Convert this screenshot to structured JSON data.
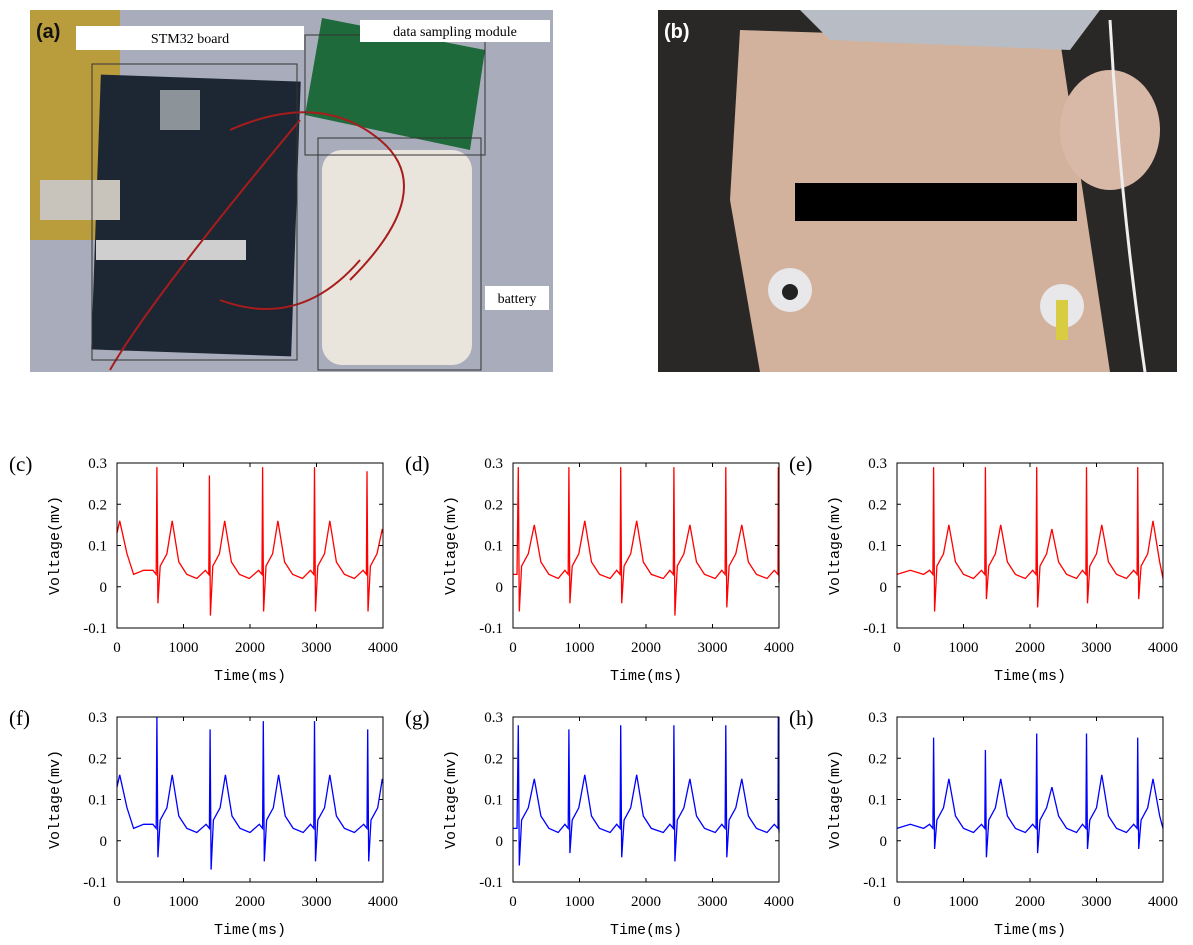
{
  "photos": {
    "a": {
      "label": "(a)",
      "annotations": [
        "STM32 board",
        "data sampling module",
        "battery"
      ]
    },
    "b": {
      "label": "(b)"
    }
  },
  "chart_data": [
    {
      "type": "line",
      "panel_label": "(c)",
      "x_label": "Time(ms)",
      "y_label": "Voltage(mv)",
      "xlim": [
        0,
        4000
      ],
      "ylim": [
        -0.1,
        0.3
      ],
      "xticks": [
        0,
        1000,
        2000,
        3000,
        4000
      ],
      "yticks": [
        -0.1,
        0,
        0.1,
        0.2,
        0.3
      ],
      "x": [
        0,
        40,
        150,
        250,
        400,
        540,
        590,
        600,
        615,
        650,
        750,
        830,
        930,
        1050,
        1200,
        1330,
        1380,
        1390,
        1405,
        1440,
        1540,
        1620,
        1720,
        1840,
        1990,
        2130,
        2180,
        2190,
        2205,
        2240,
        2340,
        2420,
        2520,
        2640,
        2790,
        2910,
        2960,
        2970,
        2985,
        3020,
        3120,
        3200,
        3300,
        3420,
        3570,
        3700,
        3750,
        3760,
        3775,
        3810,
        3910,
        3990,
        4000
      ],
      "series": [
        {
          "color": "#ff0000",
          "values": [
            0.13,
            0.16,
            0.08,
            0.03,
            0.04,
            0.04,
            0.03,
            0.29,
            -0.04,
            0.05,
            0.08,
            0.16,
            0.06,
            0.03,
            0.02,
            0.04,
            0.03,
            0.27,
            -0.07,
            0.05,
            0.08,
            0.16,
            0.06,
            0.03,
            0.02,
            0.04,
            0.03,
            0.29,
            -0.06,
            0.05,
            0.08,
            0.16,
            0.06,
            0.03,
            0.02,
            0.04,
            0.03,
            0.29,
            -0.06,
            0.05,
            0.08,
            0.16,
            0.06,
            0.03,
            0.02,
            0.04,
            0.03,
            0.28,
            -0.06,
            0.05,
            0.08,
            0.14,
            0.13
          ]
        }
      ]
    },
    {
      "type": "line",
      "panel_label": "(d)",
      "x_label": "Time(ms)",
      "y_label": "Voltage(mv)",
      "xlim": [
        0,
        4000
      ],
      "ylim": [
        -0.1,
        0.3
      ],
      "xticks": [
        0,
        1000,
        2000,
        3000,
        4000
      ],
      "yticks": [
        -0.1,
        0,
        0.1,
        0.2,
        0.3
      ],
      "x": [
        0,
        60,
        80,
        95,
        130,
        230,
        320,
        420,
        540,
        680,
        780,
        830,
        840,
        855,
        890,
        990,
        1080,
        1180,
        1300,
        1460,
        1560,
        1610,
        1620,
        1635,
        1670,
        1770,
        1860,
        1960,
        2080,
        2260,
        2360,
        2410,
        2420,
        2435,
        2470,
        2570,
        2660,
        2760,
        2880,
        3040,
        3140,
        3190,
        3200,
        3215,
        3250,
        3350,
        3440,
        3540,
        3660,
        3820,
        3930,
        3985,
        3990,
        4000
      ],
      "series": [
        {
          "color": "#ff0000",
          "values": [
            0.03,
            0.03,
            0.29,
            -0.06,
            0.05,
            0.08,
            0.15,
            0.06,
            0.03,
            0.02,
            0.04,
            0.03,
            0.29,
            -0.04,
            0.05,
            0.08,
            0.16,
            0.06,
            0.03,
            0.02,
            0.04,
            0.03,
            0.29,
            -0.04,
            0.05,
            0.08,
            0.16,
            0.06,
            0.03,
            0.02,
            0.04,
            0.03,
            0.29,
            -0.07,
            0.05,
            0.08,
            0.15,
            0.06,
            0.03,
            0.02,
            0.04,
            0.03,
            0.29,
            -0.05,
            0.05,
            0.08,
            0.15,
            0.06,
            0.03,
            0.02,
            0.04,
            0.03,
            0.29,
            0.01
          ]
        }
      ]
    },
    {
      "type": "line",
      "panel_label": "(e)",
      "x_label": "Time(ms)",
      "y_label": "Voltage(mv)",
      "xlim": [
        0,
        4000
      ],
      "ylim": [
        -0.1,
        0.3
      ],
      "xticks": [
        0,
        1000,
        2000,
        3000,
        4000
      ],
      "yticks": [
        -0.1,
        0,
        0.1,
        0.2,
        0.3
      ],
      "x": [
        0,
        200,
        400,
        490,
        540,
        550,
        565,
        600,
        700,
        780,
        880,
        1000,
        1150,
        1270,
        1320,
        1330,
        1345,
        1380,
        1480,
        1560,
        1660,
        1780,
        1930,
        2040,
        2090,
        2100,
        2115,
        2150,
        2250,
        2330,
        2430,
        2550,
        2700,
        2790,
        2840,
        2850,
        2865,
        2900,
        3000,
        3080,
        3180,
        3300,
        3450,
        3560,
        3610,
        3620,
        3635,
        3670,
        3770,
        3850,
        3950,
        4000
      ],
      "series": [
        {
          "color": "#ff0000",
          "values": [
            0.03,
            0.04,
            0.03,
            0.04,
            0.03,
            0.29,
            -0.06,
            0.05,
            0.08,
            0.15,
            0.06,
            0.03,
            0.02,
            0.04,
            0.03,
            0.29,
            -0.03,
            0.05,
            0.08,
            0.15,
            0.06,
            0.03,
            0.02,
            0.04,
            0.03,
            0.29,
            -0.05,
            0.05,
            0.08,
            0.14,
            0.06,
            0.03,
            0.02,
            0.04,
            0.03,
            0.29,
            -0.04,
            0.05,
            0.08,
            0.15,
            0.06,
            0.03,
            0.02,
            0.04,
            0.03,
            0.29,
            -0.03,
            0.05,
            0.08,
            0.16,
            0.06,
            0.02
          ]
        }
      ]
    },
    {
      "type": "line",
      "panel_label": "(f)",
      "x_label": "Time(ms)",
      "y_label": "Voltage(mv)",
      "xlim": [
        0,
        4000
      ],
      "ylim": [
        -0.1,
        0.3
      ],
      "xticks": [
        0,
        1000,
        2000,
        3000,
        4000
      ],
      "yticks": [
        -0.1,
        0,
        0.1,
        0.2,
        0.3
      ],
      "x": [
        0,
        40,
        150,
        250,
        400,
        540,
        590,
        600,
        615,
        650,
        750,
        830,
        930,
        1050,
        1200,
        1340,
        1390,
        1400,
        1415,
        1450,
        1550,
        1630,
        1730,
        1850,
        2000,
        2140,
        2190,
        2200,
        2215,
        2250,
        2350,
        2430,
        2530,
        2650,
        2800,
        2910,
        2960,
        2970,
        2985,
        3020,
        3120,
        3200,
        3300,
        3420,
        3570,
        3710,
        3760,
        3770,
        3785,
        3820,
        3920,
        3990,
        4000
      ],
      "series": [
        {
          "color": "#0000ff",
          "values": [
            0.13,
            0.16,
            0.08,
            0.03,
            0.04,
            0.04,
            0.03,
            0.3,
            -0.04,
            0.05,
            0.08,
            0.16,
            0.06,
            0.03,
            0.02,
            0.04,
            0.03,
            0.27,
            -0.07,
            0.05,
            0.08,
            0.16,
            0.06,
            0.03,
            0.02,
            0.04,
            0.03,
            0.29,
            -0.05,
            0.05,
            0.08,
            0.16,
            0.06,
            0.03,
            0.02,
            0.04,
            0.03,
            0.29,
            -0.05,
            0.05,
            0.08,
            0.16,
            0.06,
            0.03,
            0.02,
            0.04,
            0.03,
            0.27,
            -0.05,
            0.05,
            0.08,
            0.15,
            0.14
          ]
        }
      ]
    },
    {
      "type": "line",
      "panel_label": "(g)",
      "x_label": "Time(ms)",
      "y_label": "Voltage(mv)",
      "xlim": [
        0,
        4000
      ],
      "ylim": [
        -0.1,
        0.3
      ],
      "xticks": [
        0,
        1000,
        2000,
        3000,
        4000
      ],
      "yticks": [
        -0.1,
        0,
        0.1,
        0.2,
        0.3
      ],
      "x": [
        0,
        60,
        80,
        95,
        130,
        230,
        320,
        420,
        540,
        680,
        780,
        830,
        840,
        855,
        890,
        990,
        1080,
        1180,
        1300,
        1460,
        1560,
        1610,
        1620,
        1635,
        1670,
        1770,
        1860,
        1960,
        2080,
        2260,
        2360,
        2410,
        2420,
        2435,
        2470,
        2570,
        2660,
        2760,
        2880,
        3040,
        3140,
        3190,
        3200,
        3215,
        3250,
        3350,
        3440,
        3540,
        3660,
        3820,
        3930,
        3985,
        3990,
        4000
      ],
      "series": [
        {
          "color": "#0000ff",
          "values": [
            0.03,
            0.03,
            0.28,
            -0.06,
            0.05,
            0.08,
            0.15,
            0.06,
            0.03,
            0.02,
            0.04,
            0.03,
            0.27,
            -0.03,
            0.05,
            0.08,
            0.16,
            0.06,
            0.03,
            0.02,
            0.04,
            0.03,
            0.28,
            -0.04,
            0.05,
            0.08,
            0.16,
            0.06,
            0.03,
            0.02,
            0.04,
            0.03,
            0.28,
            -0.05,
            0.05,
            0.08,
            0.15,
            0.06,
            0.03,
            0.02,
            0.04,
            0.03,
            0.28,
            -0.04,
            0.05,
            0.08,
            0.15,
            0.06,
            0.03,
            0.02,
            0.04,
            0.03,
            0.3,
            0.02
          ]
        }
      ]
    },
    {
      "type": "line",
      "panel_label": "(h)",
      "x_label": "Time(ms)",
      "y_label": "Voltage(mv)",
      "xlim": [
        0,
        4000
      ],
      "ylim": [
        -0.1,
        0.3
      ],
      "xticks": [
        0,
        1000,
        2000,
        3000,
        4000
      ],
      "yticks": [
        -0.1,
        0,
        0.1,
        0.2,
        0.3
      ],
      "x": [
        0,
        200,
        400,
        490,
        540,
        550,
        565,
        600,
        700,
        780,
        880,
        1000,
        1150,
        1270,
        1320,
        1330,
        1345,
        1380,
        1480,
        1560,
        1660,
        1780,
        1930,
        2040,
        2090,
        2100,
        2115,
        2150,
        2250,
        2330,
        2430,
        2550,
        2700,
        2790,
        2840,
        2850,
        2865,
        2900,
        3000,
        3080,
        3180,
        3300,
        3450,
        3560,
        3610,
        3620,
        3635,
        3670,
        3770,
        3850,
        3950,
        4000
      ],
      "series": [
        {
          "color": "#0000ff",
          "values": [
            0.03,
            0.04,
            0.03,
            0.04,
            0.03,
            0.25,
            -0.02,
            0.05,
            0.08,
            0.15,
            0.06,
            0.03,
            0.02,
            0.04,
            0.03,
            0.22,
            -0.04,
            0.05,
            0.08,
            0.15,
            0.06,
            0.03,
            0.02,
            0.04,
            0.03,
            0.26,
            -0.03,
            0.05,
            0.08,
            0.13,
            0.06,
            0.03,
            0.02,
            0.04,
            0.03,
            0.26,
            -0.02,
            0.05,
            0.08,
            0.16,
            0.06,
            0.03,
            0.02,
            0.04,
            0.03,
            0.25,
            -0.02,
            0.05,
            0.08,
            0.15,
            0.06,
            0.03
          ]
        }
      ]
    }
  ]
}
